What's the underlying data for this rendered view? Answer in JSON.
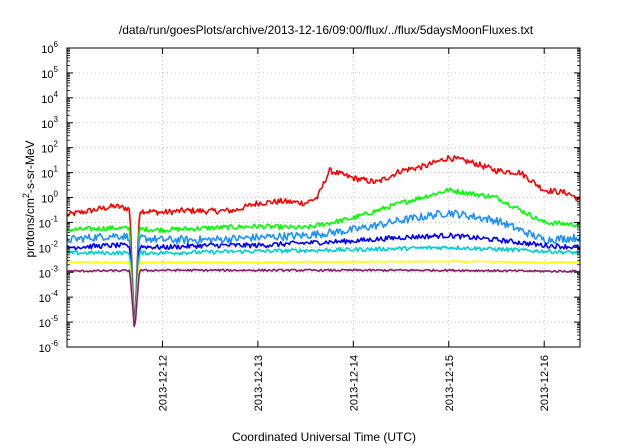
{
  "chart_data": {
    "type": "line",
    "title": "/data/run/goesPlots/archive/2013-12-16/09:00/flux/../flux/5daysMoonFluxes.txt",
    "xlabel": "Coordinated Universal Time (UTC)",
    "ylabel": "protons/cm2-s-sr-MeV",
    "ylabel_parts": {
      "base": "protons/cm",
      "sup": "2",
      "rest": "-s-sr-MeV"
    },
    "y_scale": "log",
    "ylim": [
      1e-06,
      1000000.0
    ],
    "y_ticks": [
      {
        "value": 1e-06,
        "base": "10",
        "exp": "-6"
      },
      {
        "value": 1e-05,
        "base": "10",
        "exp": "-5"
      },
      {
        "value": 0.0001,
        "base": "10",
        "exp": "-4"
      },
      {
        "value": 0.001,
        "base": "10",
        "exp": "-3"
      },
      {
        "value": 0.01,
        "base": "10",
        "exp": "-2"
      },
      {
        "value": 0.1,
        "base": "10",
        "exp": "-1"
      },
      {
        "value": 1.0,
        "base": "10",
        "exp": "0"
      },
      {
        "value": 10.0,
        "base": "10",
        "exp": "1"
      },
      {
        "value": 100.0,
        "base": "10",
        "exp": "2"
      },
      {
        "value": 1000.0,
        "base": "10",
        "exp": "3"
      },
      {
        "value": 10000.0,
        "base": "10",
        "exp": "4"
      },
      {
        "value": 100000.0,
        "base": "10",
        "exp": "5"
      },
      {
        "value": 1000000.0,
        "base": "10",
        "exp": "6"
      }
    ],
    "xlim": [
      "2013-12-11 00:00",
      "2013-12-16 09:00"
    ],
    "x_ticks": [
      "2013-12-12",
      "2013-12-13",
      "2013-12-14",
      "2013-12-15",
      "2013-12-16"
    ],
    "grid": true,
    "series": [
      {
        "color": "#ff0000",
        "x": [
          "2013-12-11 00:00",
          "2013-12-11 06:00",
          "2013-12-11 12:00",
          "2013-12-11 18:00",
          "2013-12-12 00:00",
          "2013-12-12 06:00",
          "2013-12-12 12:00",
          "2013-12-12 18:00",
          "2013-12-13 00:00",
          "2013-12-13 06:00",
          "2013-12-13 12:00",
          "2013-12-13 15:00",
          "2013-12-13 18:00",
          "2013-12-14 00:00",
          "2013-12-14 06:00",
          "2013-12-14 12:00",
          "2013-12-14 18:00",
          "2013-12-15 00:00",
          "2013-12-15 06:00",
          "2013-12-15 12:00",
          "2013-12-15 18:00",
          "2013-12-16 00:00",
          "2013-12-16 06:00",
          "2013-12-16 09:00"
        ],
        "y": [
          0.2,
          0.3,
          0.45,
          0.3,
          0.25,
          0.3,
          0.28,
          0.3,
          0.6,
          0.7,
          0.6,
          1.0,
          12,
          6,
          4,
          12,
          18,
          40,
          25,
          12,
          10,
          2,
          1.5,
          0.8
        ]
      },
      {
        "color": "#00ff00",
        "x": [
          "2013-12-11 00:00",
          "2013-12-11 12:00",
          "2013-12-12 00:00",
          "2013-12-12 12:00",
          "2013-12-13 00:00",
          "2013-12-13 12:00",
          "2013-12-14 00:00",
          "2013-12-14 12:00",
          "2013-12-15 00:00",
          "2013-12-15 12:00",
          "2013-12-16 00:00",
          "2013-12-16 09:00"
        ],
        "y": [
          0.05,
          0.06,
          0.05,
          0.06,
          0.07,
          0.06,
          0.15,
          0.6,
          2.0,
          1.0,
          0.1,
          0.08
        ]
      },
      {
        "color": "#1e90ff",
        "x": [
          "2013-12-11 00:00",
          "2013-12-11 12:00",
          "2013-12-12 00:00",
          "2013-12-12 12:00",
          "2013-12-13 00:00",
          "2013-12-13 12:00",
          "2013-12-14 00:00",
          "2013-12-14 12:00",
          "2013-12-15 00:00",
          "2013-12-15 12:00",
          "2013-12-16 00:00",
          "2013-12-16 09:00"
        ],
        "y": [
          0.02,
          0.03,
          0.02,
          0.02,
          0.025,
          0.03,
          0.05,
          0.12,
          0.25,
          0.12,
          0.02,
          0.025
        ]
      },
      {
        "color": "#0000ff",
        "x": [
          "2013-12-11 00:00",
          "2013-12-11 12:00",
          "2013-12-12 00:00",
          "2013-12-12 12:00",
          "2013-12-13 00:00",
          "2013-12-13 12:00",
          "2013-12-14 00:00",
          "2013-12-14 12:00",
          "2013-12-15 00:00",
          "2013-12-15 12:00",
          "2013-12-16 00:00",
          "2013-12-16 09:00"
        ],
        "y": [
          0.01,
          0.012,
          0.01,
          0.012,
          0.012,
          0.015,
          0.018,
          0.025,
          0.03,
          0.02,
          0.012,
          0.01
        ]
      },
      {
        "color": "#00ced1",
        "x": [
          "2013-12-11 00:00",
          "2013-12-12 00:00",
          "2013-12-13 00:00",
          "2013-12-14 00:00",
          "2013-12-15 00:00",
          "2013-12-16 00:00",
          "2013-12-16 09:00"
        ],
        "y": [
          0.006,
          0.006,
          0.007,
          0.008,
          0.01,
          0.007,
          0.006
        ]
      },
      {
        "color": "#ffff00",
        "x": [
          "2013-12-11 00:00",
          "2013-12-12 00:00",
          "2013-12-13 00:00",
          "2013-12-14 00:00",
          "2013-12-15 00:00",
          "2013-12-16 00:00",
          "2013-12-16 09:00"
        ],
        "y": [
          0.0025,
          0.0025,
          0.0025,
          0.0026,
          0.0027,
          0.0025,
          0.0025
        ]
      },
      {
        "color": "#8b1a6b",
        "x": [
          "2013-12-11 00:00",
          "2013-12-12 00:00",
          "2013-12-13 00:00",
          "2013-12-14 00:00",
          "2013-12-15 00:00",
          "2013-12-16 00:00",
          "2013-12-16 09:00"
        ],
        "y": [
          0.0011,
          0.0012,
          0.0012,
          0.0012,
          0.0012,
          0.0011,
          0.0011
        ]
      }
    ],
    "dips": [
      {
        "time": "2013-12-11 17:00",
        "y": 4e-06,
        "width_hours": 1.2,
        "colors": [
          "#1e90ff",
          "#8b1a6b"
        ]
      }
    ]
  }
}
